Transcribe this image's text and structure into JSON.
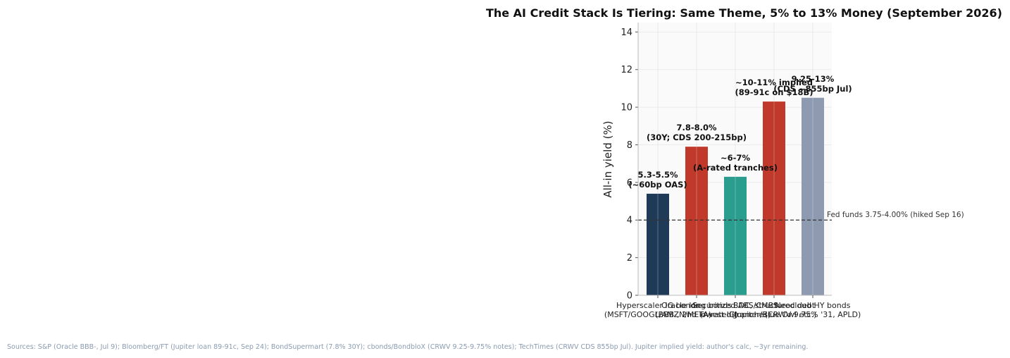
{
  "chart_data": {
    "type": "bar",
    "title": "The AI Credit Stack Is Tiering: Same Theme, 5% to 13% Money (September 2026)",
    "ylabel": "All-in yield (%)",
    "xlabel": "",
    "ylim": [
      0,
      14.5
    ],
    "yticks": [
      "0",
      "2",
      "4",
      "6",
      "8",
      "10",
      "12",
      "14"
    ],
    "grid": true,
    "categories": [
      [
        "Hyperscaler IG bonds",
        "(MSFT/GOOGL/AMZN/META)"
      ],
      [
        "Oracle long bonds",
        "(BBB-, 2nd lowest IG)"
      ],
      [
        "Securitized ABS/CMBS",
        "(A-rated tranches)"
      ],
      [
        "BDC, structured debt",
        "(Jupiter/Blue Owl etc.)"
      ],
      [
        "Neocloud HY bonds",
        "(CRWV 9.75% '31, APLD)"
      ]
    ],
    "values": [
      5.4,
      7.9,
      6.3,
      10.3,
      10.5
    ],
    "colors": [
      "#1f3a56",
      "#c0392b",
      "#2a9d8f",
      "#c0392b",
      "#8e9aaf"
    ],
    "data_labels": [
      [
        "5.3-5.5%",
        "(~60bp OAS)"
      ],
      [
        "7.8-8.0%",
        "(30Y; CDS 200-215bp)"
      ],
      [
        "~6-7%",
        "(A-rated tranches)"
      ],
      [
        "~10-11% implied",
        "(89-91c on $18B)"
      ],
      [
        "9.25-13%",
        "(CDS ~855bp Jul)"
      ]
    ],
    "reference_line": {
      "value": 4,
      "label": "Fed funds 3.75-4.00% (hiked Sep 16)"
    }
  },
  "footer": {
    "sources": "Sources: S&P (Oracle BBB-, Jul 9); Bloomberg/FT (Jupiter loan 89-91c, Sep 24); BondSupermart (7.8% 30Y); cbonds/BondbloX (CRWV 9.25-9.75% notes); TechTimes (CRWV CDS 855bp Jul). Jupiter implied yield: author's calc, ~3yr remaining."
  }
}
